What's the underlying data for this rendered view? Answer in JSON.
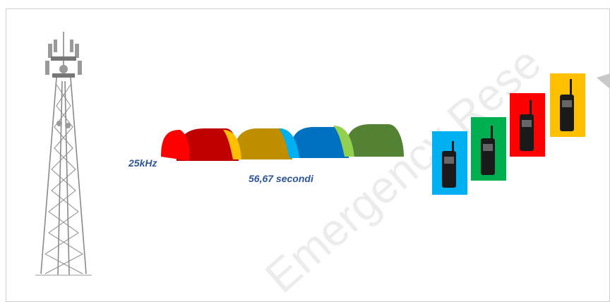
{
  "labels": {
    "bandwidth": "25kHz",
    "duration": "56,67 secondi"
  },
  "watermark": "Emergency Rese"
}
